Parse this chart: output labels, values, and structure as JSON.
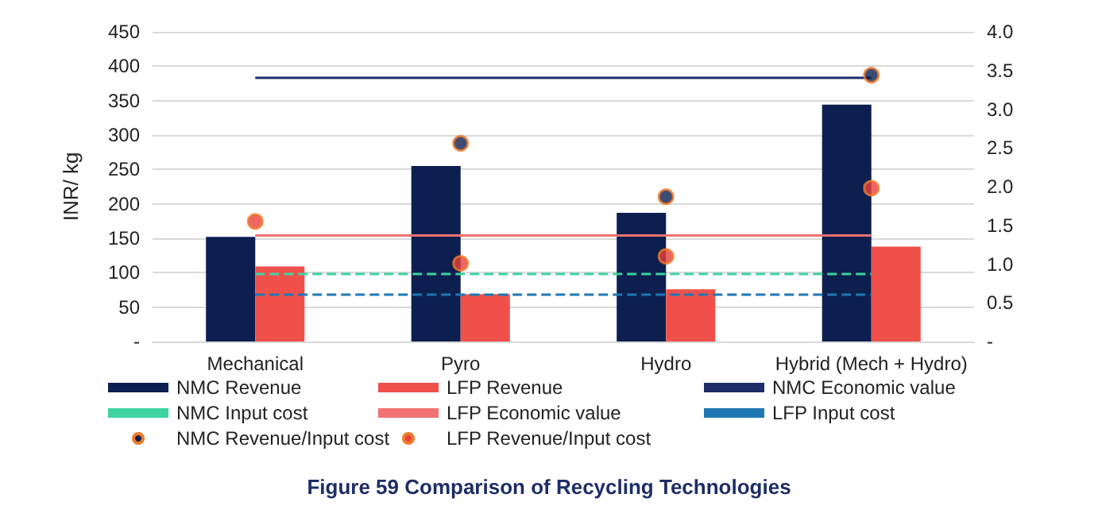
{
  "chart_data": {
    "type": "bar",
    "title": "Figure 59 Comparison of Recycling Technologies",
    "ylabel": "INR/ kg",
    "categories": [
      "Mechanical",
      "Pyro",
      "Hydro",
      "Hybrid (Mech + Hydro)"
    ],
    "series": [
      {
        "name": "NMC Revenue",
        "color": "#0c1f4f",
        "values": [
          152,
          255,
          187,
          344
        ]
      },
      {
        "name": "LFP Revenue",
        "color": "#f0504a",
        "values": [
          109,
          69,
          76,
          138
        ]
      },
      {
        "name": "NMC Economic value",
        "type": "line",
        "color": "#1f2d66",
        "values": [
          383,
          383,
          383,
          383
        ]
      },
      {
        "name": "NMC Input cost",
        "type": "line",
        "line_style": "dashed",
        "color": "#3ed3a0",
        "values": [
          98,
          98,
          98,
          98
        ]
      },
      {
        "name": "LFP Economic value",
        "type": "line",
        "color": "#f07272",
        "values": [
          154,
          154,
          154,
          154
        ]
      },
      {
        "name": "LFP Input cost",
        "type": "line",
        "line_style": "dashed",
        "color": "#1f77b4",
        "values": [
          68,
          68,
          68,
          68
        ]
      },
      {
        "name": "NMC Revenue/Input cost",
        "type": "scatter",
        "axis": "y2",
        "marker": "circle",
        "color": "#0c1f4f",
        "values": [
          null,
          2.56,
          1.87,
          3.44
        ]
      },
      {
        "name": "LFP Revenue/Input cost",
        "type": "scatter",
        "axis": "y2",
        "marker": "circle",
        "color": "#e8403a",
        "values": [
          1.55,
          1.01,
          1.1,
          1.98
        ]
      }
    ],
    "ylim": [
      0,
      450
    ],
    "yticks": [
      {
        "value": 0,
        "label": "-"
      },
      50,
      100,
      150,
      200,
      250,
      300,
      350,
      400,
      450
    ],
    "y2lim": [
      0,
      4
    ],
    "y2ticks": [
      {
        "value": 0,
        "label": "-"
      },
      0.5,
      {
        "value": 1,
        "label": "1.0"
      },
      1.5,
      {
        "value": 2,
        "label": "2.0"
      },
      2.5,
      {
        "value": 3,
        "label": "3.0"
      },
      3.5,
      {
        "value": 4,
        "label": "4.0"
      }
    ],
    "grid": "y",
    "legend": "bottom"
  }
}
